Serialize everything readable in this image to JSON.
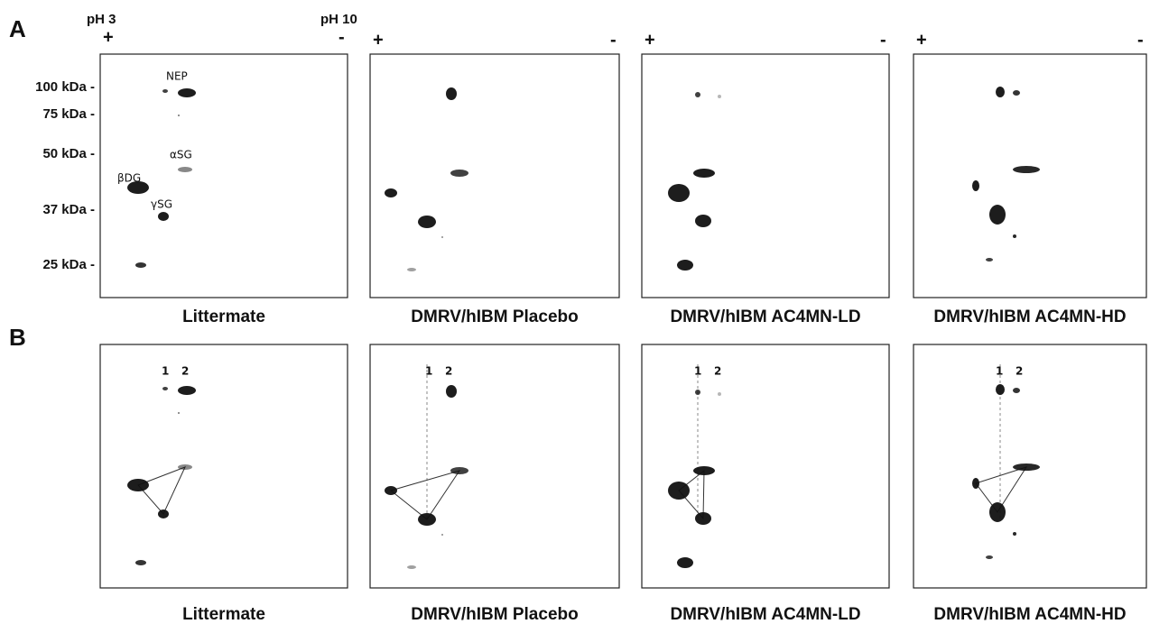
{
  "panel_a": {
    "letter": "A",
    "ph_start": "pH 3",
    "ph_end": "pH 10",
    "plus": "+",
    "minus": "-",
    "mass_labels": [
      "100 kDa -",
      "75 kDa -",
      "50 kDa -",
      "37 kDa -",
      "25 kDa -"
    ],
    "spot_labels": [
      "NEP",
      "αSG",
      "βDG",
      "γSG"
    ],
    "captions": [
      "Littermate",
      "DMRV/hIBM Placebo",
      "DMRV/hIBM AC4MN-LD",
      "DMRV/hIBM AC4MN-HD"
    ]
  },
  "panel_b": {
    "letter": "B",
    "spot_labels": [
      "1",
      "2"
    ],
    "captions": [
      "Littermate",
      "DMRV/hIBM Placebo",
      "DMRV/hIBM AC4MN-LD",
      "DMRV/hIBM AC4MN-HD"
    ]
  }
}
